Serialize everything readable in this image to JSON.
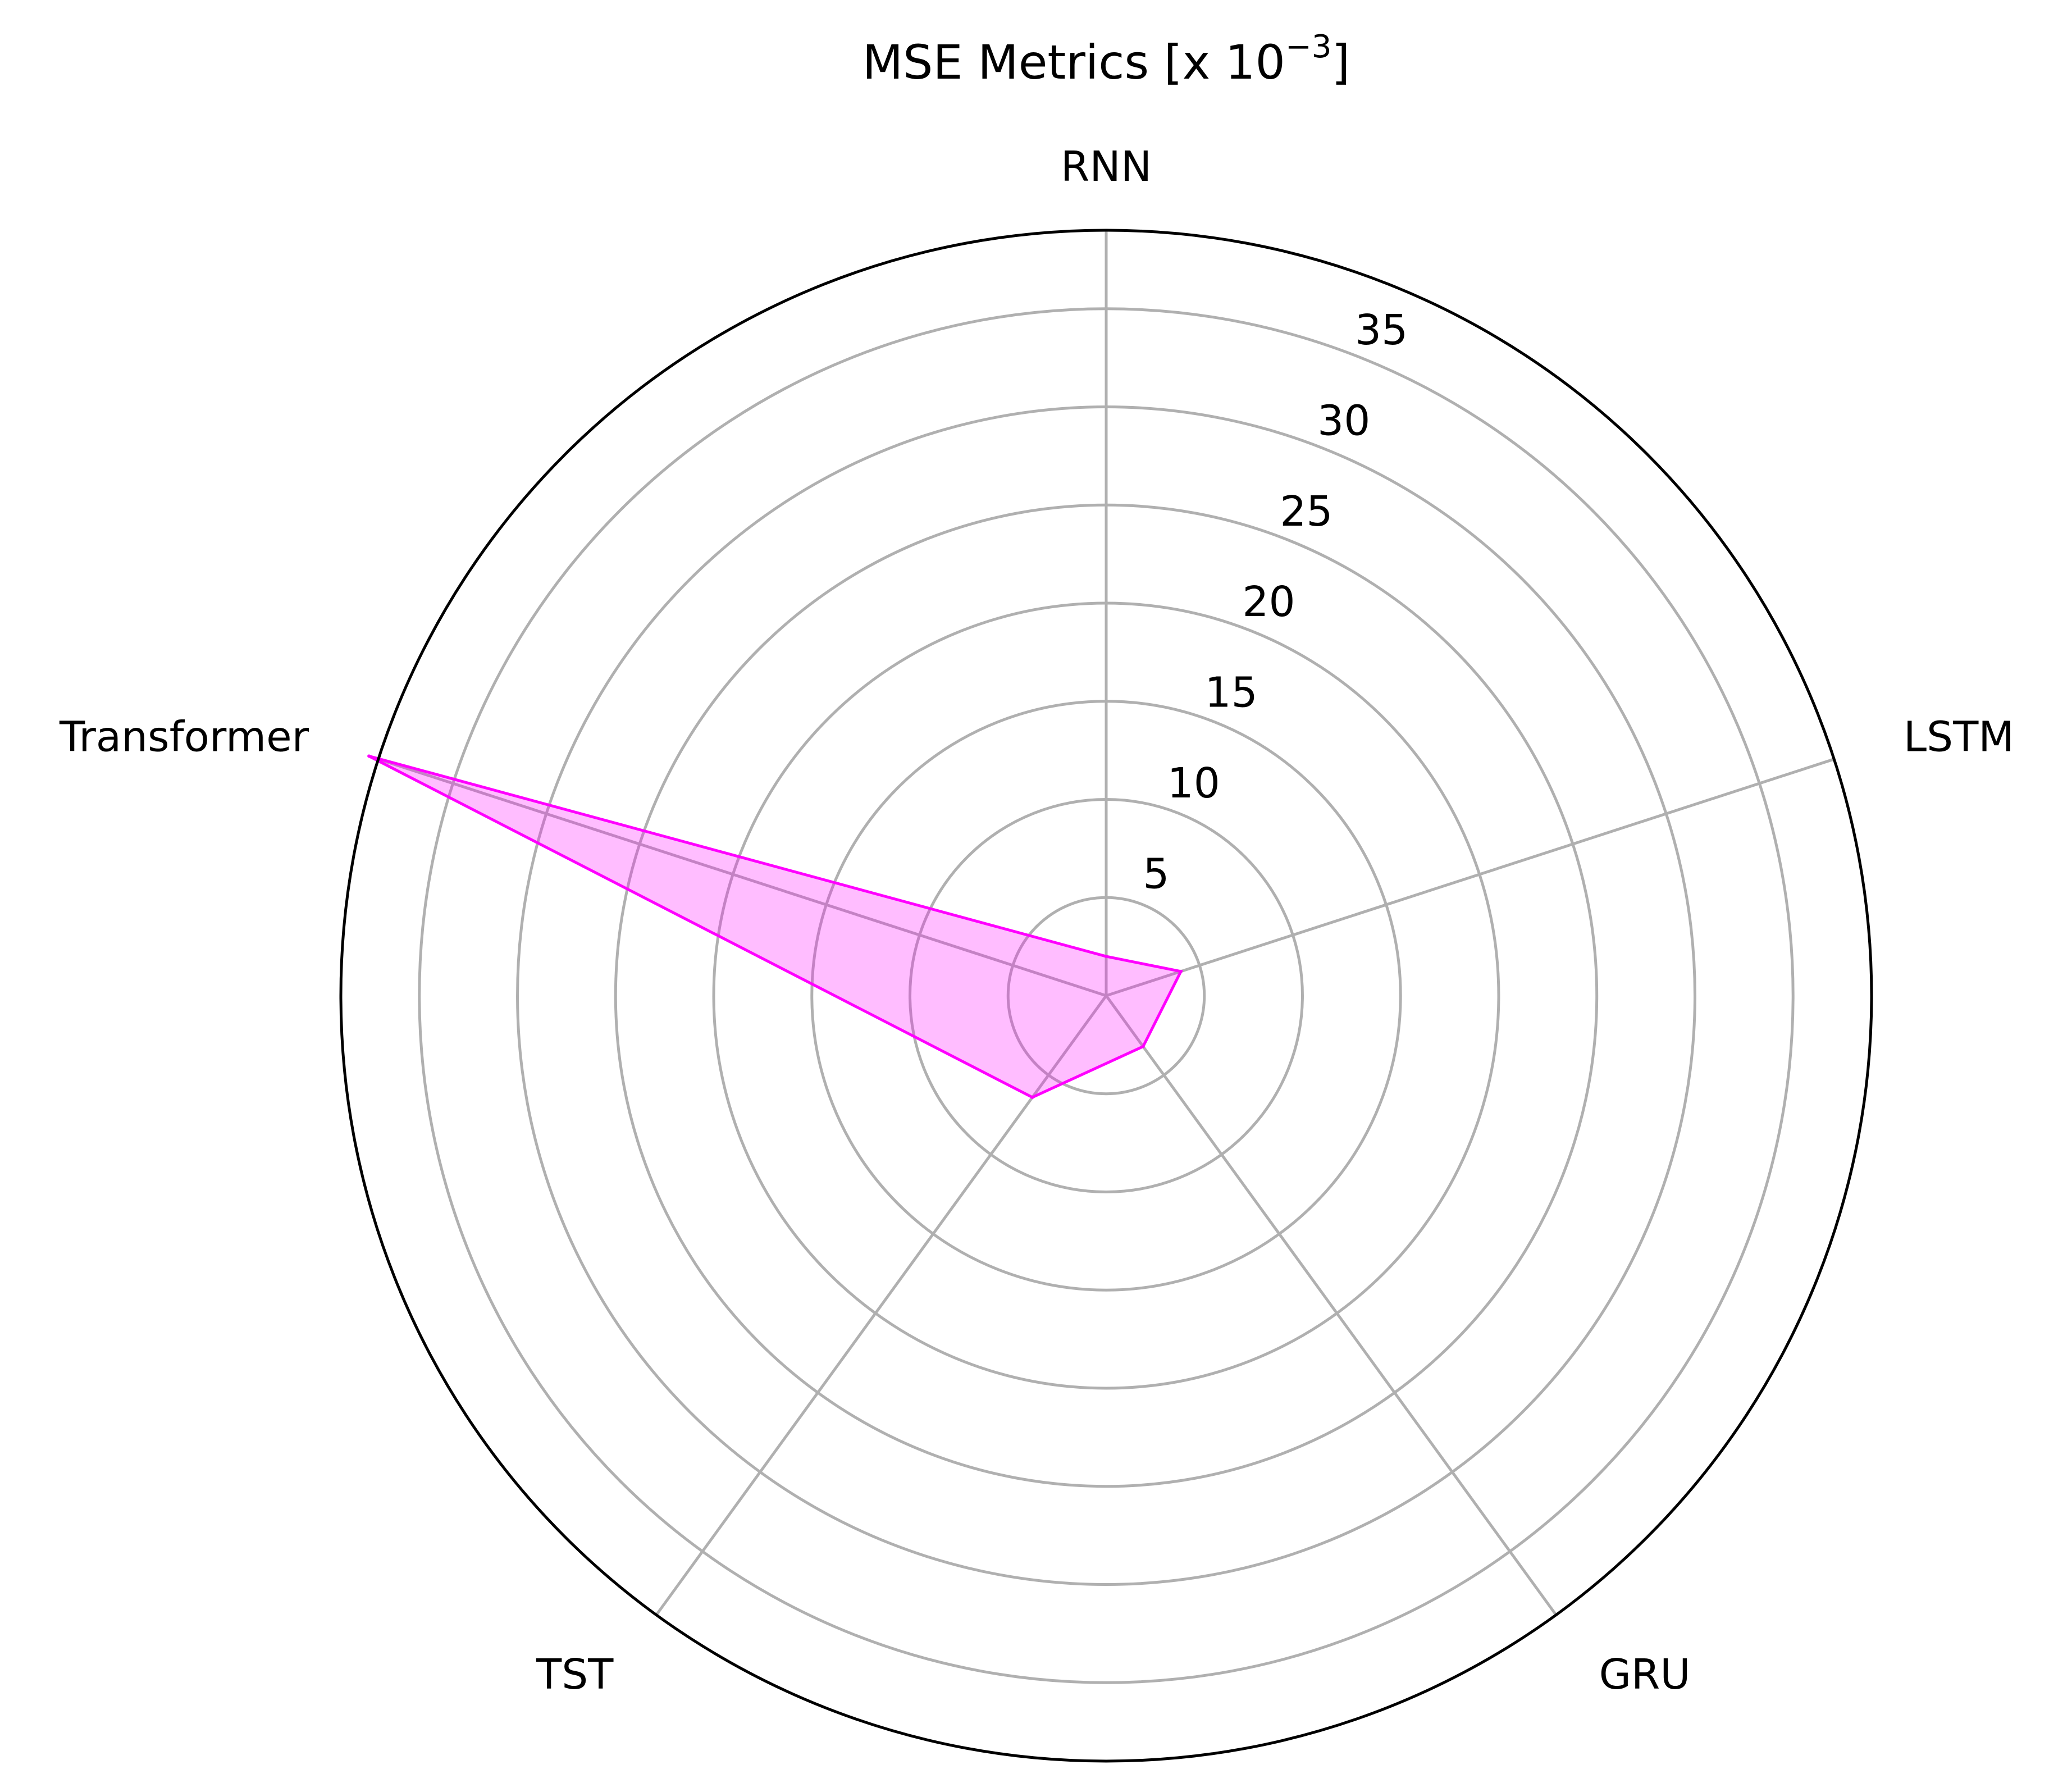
{
  "chart_data": {
    "type": "radar",
    "title": {
      "main": "MSE Metrics  [x 10",
      "superscript": "−3",
      "close": "]"
    },
    "categories": [
      "RNN",
      "LSTM",
      "GRU",
      "TST",
      "Transformer"
    ],
    "series": [
      {
        "values": [
          2.0,
          4.0,
          3.2,
          6.4,
          39.5
        ],
        "color": "#ff00ff",
        "fill_color": "#ff00ff",
        "fill_opacity": 0.26
      }
    ],
    "r_ticks": [
      5,
      10,
      15,
      20,
      25,
      30,
      35
    ],
    "r_tick_labels": [
      "5",
      "10",
      "15",
      "20",
      "25",
      "30",
      "35"
    ],
    "rlim": [
      0,
      39
    ],
    "grid": true,
    "grid_color": "#b0b0b0",
    "frame_color": "#000000"
  }
}
